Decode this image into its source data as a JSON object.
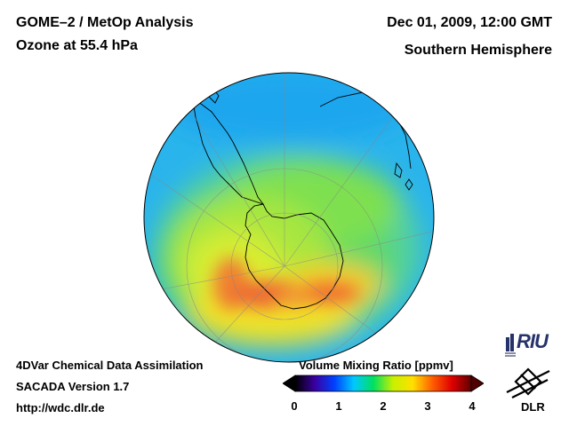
{
  "header": {
    "title": "GOME–2 / MetOp Analysis",
    "subtitle": "Ozone at 55.4 hPa",
    "date": "Dec 01, 2009, 12:00 GMT",
    "region": "Southern Hemisphere"
  },
  "footer": {
    "line1": "4DVar Chemical Data Assimilation",
    "line2": "SACADA Version 1.7",
    "line3": "http://wdc.dlr.de"
  },
  "colorbar": {
    "title": "Volume Mixing Ratio [ppmv]",
    "ticks": [
      "0",
      "1",
      "2",
      "3",
      "4"
    ],
    "min": 0,
    "max": 4,
    "colors": [
      "#000000",
      "#3a00a0",
      "#0040ff",
      "#00c8ff",
      "#00e060",
      "#c8f000",
      "#ffe000",
      "#ff6000",
      "#e00000",
      "#600000"
    ]
  },
  "logos": {
    "riu": "RIU",
    "dlr": "DLR"
  }
}
